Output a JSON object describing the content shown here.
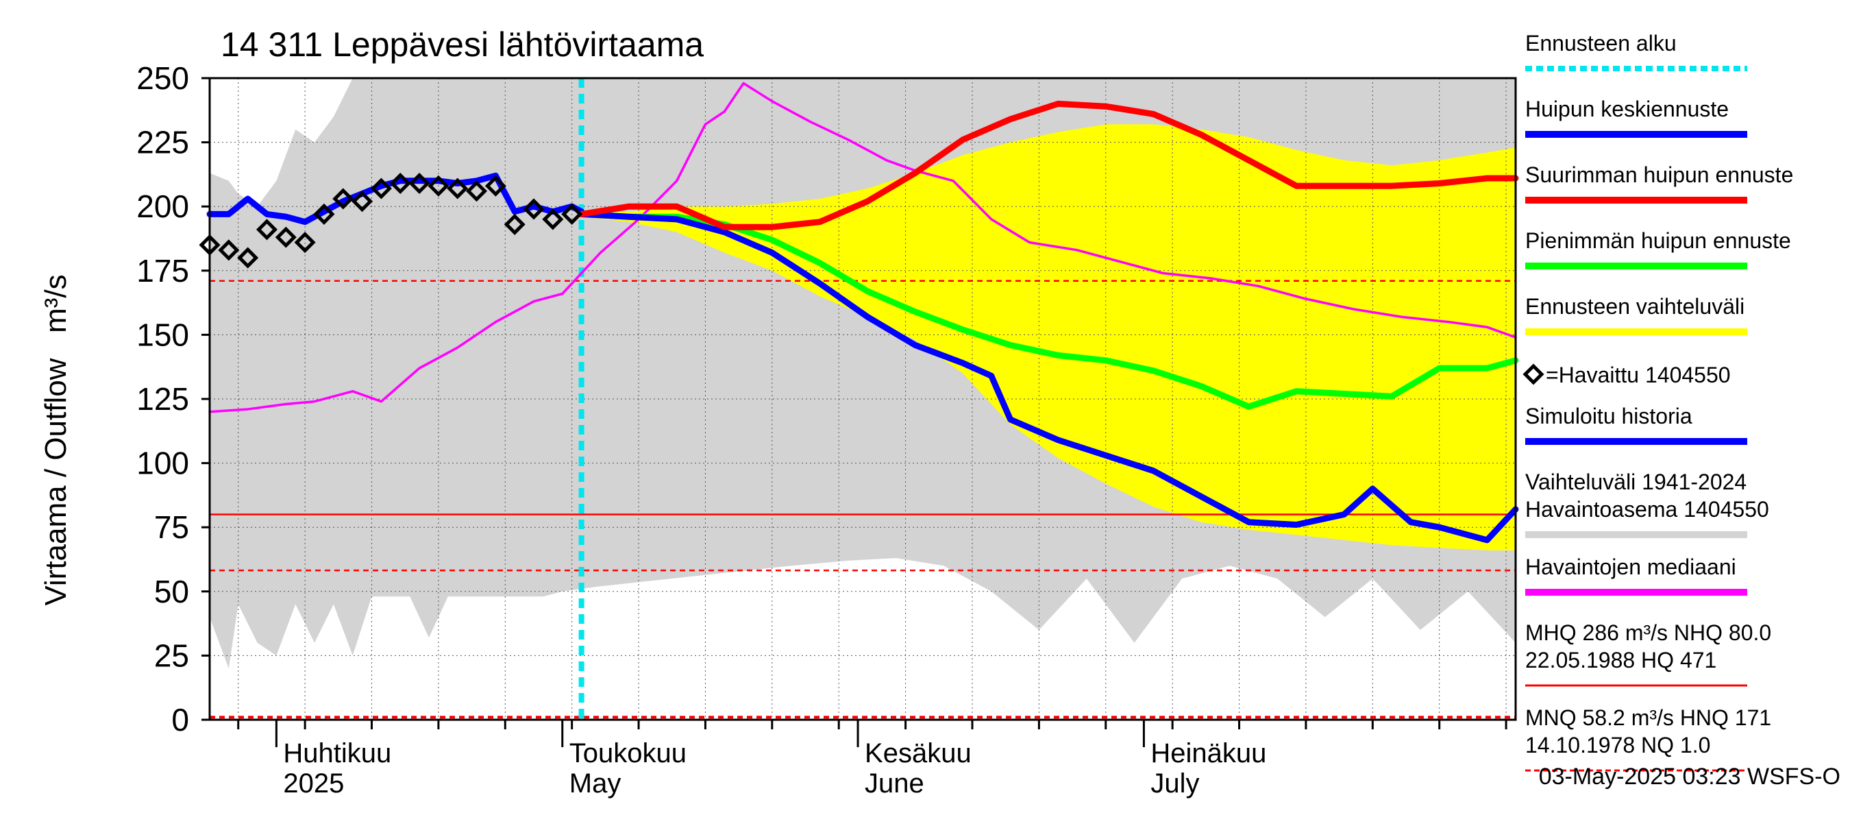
{
  "chart_data": {
    "type": "line",
    "title": "14 311 Leppävesi lähtövirtaama",
    "ylabel": "Virtaama / Outflow   m³/s",
    "ylim": [
      0,
      250
    ],
    "yticks": [
      0,
      25,
      50,
      75,
      100,
      125,
      150,
      175,
      200,
      225,
      250
    ],
    "xlim": [
      "2025-03-25",
      "2025-08-09"
    ],
    "grid": true,
    "legend_position": "right",
    "months": [
      {
        "date": "2025-04-01",
        "fi": "Huhtikuu",
        "en": "2025"
      },
      {
        "date": "2025-05-01",
        "fi": "Toukokuu",
        "en": "May"
      },
      {
        "date": "2025-06-01",
        "fi": "Kesäkuu",
        "en": "June"
      },
      {
        "date": "2025-07-01",
        "fi": "Heinäkuu",
        "en": "July"
      }
    ],
    "forecast_start": "2025-05-03",
    "reference_lines": [
      {
        "value": 171,
        "style": "dashed",
        "color": "#ff0000"
      },
      {
        "value": 80.0,
        "style": "solid",
        "color": "#ff0000"
      },
      {
        "value": 58.2,
        "style": "dashed",
        "color": "#ff0000"
      },
      {
        "value": 1.0,
        "style": "dashed",
        "color": "#ff0000"
      }
    ],
    "series": [
      {
        "name": "Vaihteluväli 1941-2024 Havaintoasema 1404550",
        "kind": "band",
        "color": "#d3d3d3",
        "x": [
          "2025-03-25",
          "2025-03-27",
          "2025-03-28",
          "2025-03-30",
          "2025-04-01",
          "2025-04-03",
          "2025-04-05",
          "2025-04-07",
          "2025-04-09",
          "2025-04-11",
          "2025-04-13",
          "2025-04-15",
          "2025-04-17",
          "2025-04-19",
          "2025-04-22",
          "2025-04-25",
          "2025-04-29",
          "2025-05-01",
          "2025-05-05",
          "2025-05-10",
          "2025-05-15",
          "2025-05-20",
          "2025-05-25",
          "2025-05-31",
          "2025-06-05",
          "2025-06-10",
          "2025-06-15",
          "2025-06-20",
          "2025-06-25",
          "2025-06-30",
          "2025-07-05",
          "2025-07-10",
          "2025-07-15",
          "2025-07-20",
          "2025-07-25",
          "2025-07-30",
          "2025-08-04",
          "2025-08-09"
        ],
        "upper": [
          213,
          210,
          205,
          200,
          210,
          230,
          225,
          235,
          250,
          250,
          250,
          250,
          250,
          250,
          250,
          250,
          250,
          250,
          250,
          250,
          250,
          250,
          250,
          250,
          250,
          250,
          250,
          250,
          250,
          250,
          250,
          250,
          250,
          250,
          250,
          250,
          250,
          250
        ],
        "lower": [
          40,
          20,
          45,
          30,
          25,
          45,
          30,
          45,
          25,
          48,
          48,
          48,
          32,
          48,
          48,
          48,
          48,
          50,
          52,
          54,
          56,
          58,
          60,
          62,
          63,
          60,
          50,
          35,
          55,
          30,
          55,
          60,
          55,
          40,
          55,
          35,
          50,
          30
        ]
      },
      {
        "name": "Ennusteen vaihteluväli",
        "kind": "band",
        "color": "#ffff00",
        "x": [
          "2025-05-03",
          "2025-05-08",
          "2025-05-13",
          "2025-05-18",
          "2025-05-23",
          "2025-05-28",
          "2025-06-02",
          "2025-06-07",
          "2025-06-12",
          "2025-06-17",
          "2025-06-22",
          "2025-06-27",
          "2025-07-02",
          "2025-07-07",
          "2025-07-12",
          "2025-07-17",
          "2025-07-22",
          "2025-07-27",
          "2025-08-01",
          "2025-08-06",
          "2025-08-09"
        ],
        "upper": [
          197,
          198,
          200,
          200,
          201,
          203,
          207,
          213,
          220,
          225,
          229,
          232,
          232,
          230,
          227,
          222,
          218,
          216,
          218,
          221,
          223
        ],
        "lower": [
          196,
          194,
          190,
          182,
          175,
          165,
          157,
          148,
          135,
          115,
          102,
          92,
          83,
          77,
          74,
          72,
          70,
          68,
          67,
          66,
          66
        ]
      },
      {
        "name": "Havaintojen mediaani",
        "kind": "line",
        "color": "#ff00ff",
        "x": [
          "2025-03-25",
          "2025-03-29",
          "2025-04-02",
          "2025-04-05",
          "2025-04-09",
          "2025-04-12",
          "2025-04-16",
          "2025-04-20",
          "2025-04-24",
          "2025-04-28",
          "2025-05-01",
          "2025-05-05",
          "2025-05-09",
          "2025-05-13",
          "2025-05-16",
          "2025-05-18",
          "2025-05-20",
          "2025-05-23",
          "2025-05-27",
          "2025-05-31",
          "2025-06-04",
          "2025-06-07",
          "2025-06-11",
          "2025-06-15",
          "2025-06-19",
          "2025-06-24",
          "2025-06-29",
          "2025-07-03",
          "2025-07-08",
          "2025-07-13",
          "2025-07-18",
          "2025-07-23",
          "2025-07-28",
          "2025-08-02",
          "2025-08-06",
          "2025-08-09"
        ],
        "values": [
          120,
          121,
          123,
          124,
          128,
          124,
          137,
          145,
          155,
          163,
          166,
          182,
          195,
          210,
          232,
          237,
          248,
          241,
          233,
          226,
          218,
          214,
          210,
          195,
          186,
          183,
          178,
          174,
          172,
          169,
          164,
          160,
          157,
          155,
          153,
          149
        ]
      },
      {
        "name": "Simuloitu historia",
        "kind": "line",
        "color": "#0000ff",
        "x": [
          "2025-03-25",
          "2025-03-27",
          "2025-03-29",
          "2025-03-31",
          "2025-04-02",
          "2025-04-04",
          "2025-04-06",
          "2025-04-08",
          "2025-04-10",
          "2025-04-12",
          "2025-04-14",
          "2025-04-16",
          "2025-04-18",
          "2025-04-20",
          "2025-04-22",
          "2025-04-24",
          "2025-04-26",
          "2025-04-28",
          "2025-04-30",
          "2025-05-02",
          "2025-05-03"
        ],
        "values": [
          197,
          197,
          203,
          197,
          196,
          194,
          198,
          202,
          205,
          208,
          210,
          210,
          210,
          209,
          210,
          212,
          198,
          200,
          198,
          200,
          198
        ]
      },
      {
        "name": "Pienimmän huipun ennuste",
        "kind": "line",
        "color": "#00ff00",
        "x": [
          "2025-05-03",
          "2025-05-08",
          "2025-05-13",
          "2025-05-18",
          "2025-05-23",
          "2025-05-28",
          "2025-06-02",
          "2025-06-07",
          "2025-06-12",
          "2025-06-17",
          "2025-06-22",
          "2025-06-27",
          "2025-07-02",
          "2025-07-07",
          "2025-07-12",
          "2025-07-17",
          "2025-07-22",
          "2025-07-27",
          "2025-08-01",
          "2025-08-06",
          "2025-08-09"
        ],
        "values": [
          197,
          196,
          196,
          193,
          187,
          178,
          167,
          159,
          152,
          146,
          142,
          140,
          136,
          130,
          122,
          128,
          127,
          126,
          137,
          137,
          140
        ]
      },
      {
        "name": "Huipun keskiennuste",
        "kind": "line",
        "color": "#0000ff",
        "x": [
          "2025-05-03",
          "2025-05-08",
          "2025-05-13",
          "2025-05-18",
          "2025-05-23",
          "2025-05-28",
          "2025-06-02",
          "2025-06-07",
          "2025-06-12",
          "2025-06-15",
          "2025-06-17",
          "2025-06-22",
          "2025-06-27",
          "2025-07-02",
          "2025-07-07",
          "2025-07-12",
          "2025-07-17",
          "2025-07-22",
          "2025-07-25",
          "2025-07-29",
          "2025-08-01",
          "2025-08-06",
          "2025-08-09"
        ],
        "values": [
          197,
          196,
          195,
          190,
          182,
          170,
          157,
          146,
          139,
          134,
          117,
          109,
          103,
          97,
          87,
          77,
          76,
          80,
          90,
          77,
          75,
          70,
          82
        ]
      },
      {
        "name": "Suurimman huipun ennuste",
        "kind": "line",
        "color": "#ff0000",
        "x": [
          "2025-05-03",
          "2025-05-08",
          "2025-05-13",
          "2025-05-18",
          "2025-05-23",
          "2025-05-28",
          "2025-06-02",
          "2025-06-07",
          "2025-06-12",
          "2025-06-17",
          "2025-06-22",
          "2025-06-27",
          "2025-07-02",
          "2025-07-07",
          "2025-07-12",
          "2025-07-17",
          "2025-07-22",
          "2025-07-27",
          "2025-08-01",
          "2025-08-06",
          "2025-08-09"
        ],
        "values": [
          197,
          200,
          200,
          192,
          192,
          194,
          202,
          213,
          226,
          234,
          240,
          239,
          236,
          228,
          218,
          208,
          208,
          208,
          209,
          211,
          211
        ]
      },
      {
        "name": "=Havaittu 1404550",
        "kind": "markers",
        "color": "#000000",
        "x": [
          "2025-03-25",
          "2025-03-27",
          "2025-03-29",
          "2025-03-31",
          "2025-04-02",
          "2025-04-04",
          "2025-04-06",
          "2025-04-08",
          "2025-04-10",
          "2025-04-12",
          "2025-04-14",
          "2025-04-16",
          "2025-04-18",
          "2025-04-20",
          "2025-04-22",
          "2025-04-24",
          "2025-04-26",
          "2025-04-28",
          "2025-04-30",
          "2025-05-02"
        ],
        "values": [
          185,
          183,
          180,
          191,
          188,
          186,
          197,
          203,
          202,
          207,
          209,
          209,
          208,
          207,
          206,
          208,
          193,
          199,
          195,
          197
        ]
      }
    ],
    "legend": [
      {
        "label": "Ennusteen alku",
        "style": "dotted",
        "color": "#00e5ee"
      },
      {
        "label": "Huipun keskiennuste",
        "style": "line",
        "color": "#0000ff"
      },
      {
        "label": "Suurimman huipun ennuste",
        "style": "line",
        "color": "#ff0000"
      },
      {
        "label": "Pienimmän huipun ennuste",
        "style": "line",
        "color": "#00ff00"
      },
      {
        "label": "Ennusteen vaihteluväli",
        "style": "line",
        "color": "#ffff00"
      },
      {
        "label": "=Havaittu 1404550",
        "style": "marker",
        "color": "#000000"
      },
      {
        "label": "Simuloitu historia",
        "style": "line",
        "color": "#0000ff"
      },
      {
        "label": "Vaihteluväli 1941-2024",
        "label2": " Havaintoasema 1404550",
        "style": "line",
        "color": "#d3d3d3"
      },
      {
        "label": "Havaintojen mediaani",
        "style": "line",
        "color": "#ff00ff"
      },
      {
        "label": "MHQ  286 m³/s NHQ 80.0",
        "label2": "22.05.1988 HQ  471",
        "style": "thinline",
        "color": "#ff0000"
      },
      {
        "label": "MNQ 58.2 m³/s HNQ  171",
        "label2": "14.10.1978 NQ  1.0",
        "style": "dashed",
        "color": "#ff0000"
      }
    ],
    "footer": "03-May-2025 03:23 WSFS-O"
  }
}
